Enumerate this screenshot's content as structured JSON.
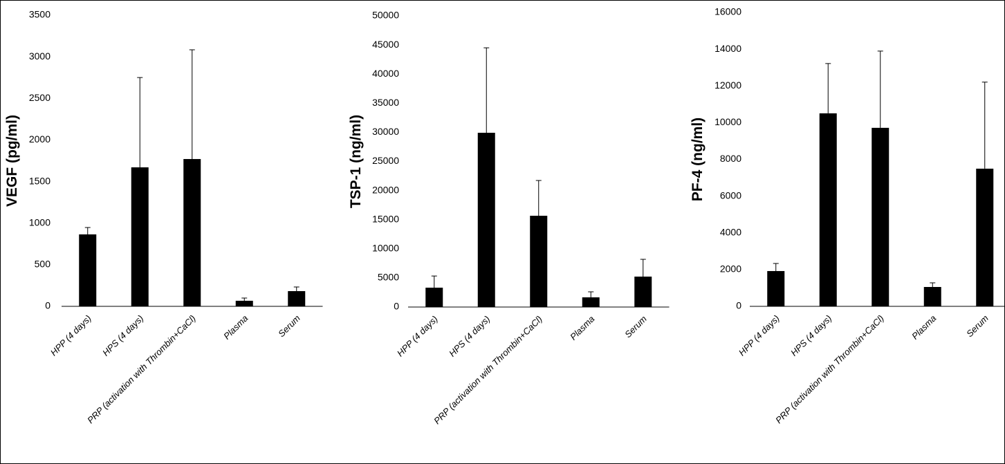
{
  "chart_data": [
    {
      "type": "bar",
      "y_label": "VEGF (pg/ml)",
      "color": "#000000",
      "categories": [
        "HPP (4 days)",
        "HPS (4 days)",
        "PRP (activation with Thrombin+CaCl)",
        "Plasma",
        "Serum"
      ],
      "values": [
        865,
        1671,
        1771,
        67,
        183
      ],
      "errors": [
        83,
        1080,
        1313,
        33,
        50
      ],
      "ylim": [
        0,
        3500
      ],
      "yticks": [
        0,
        500,
        1000,
        1500,
        2000,
        2500,
        3000,
        3500
      ]
    },
    {
      "type": "bar",
      "y_label": "TSP-1 (ng/ml)",
      "color": "#000000",
      "categories": [
        "HPP (4 days)",
        "HPS (4 days)",
        "PRP (activation with Thrombin+CaCl)",
        "Plasma",
        "Serum"
      ],
      "values": [
        3325,
        29929,
        15677,
        1663,
        5226
      ],
      "errors": [
        2000,
        14600,
        6060,
        950,
        2970
      ],
      "ylim": [
        0,
        50000
      ],
      "yticks": [
        0,
        5000,
        10000,
        15000,
        20000,
        25000,
        30000,
        35000,
        40000,
        45000,
        50000
      ]
    },
    {
      "type": "bar",
      "y_label": "PF-4 (ng/ml)",
      "color": "#000000",
      "categories": [
        "HPP (4 days)",
        "HPS (4 days)",
        "PRP (activation with Thrombin+CaCl)",
        "Plasma",
        "Serum"
      ],
      "values": [
        1921,
        10508,
        9718,
        1054,
        7495
      ],
      "errors": [
        414,
        2710,
        4180,
        227,
        4710
      ],
      "ylim": [
        0,
        16000
      ],
      "yticks": [
        0,
        2000,
        4000,
        6000,
        8000,
        10000,
        12000,
        14000,
        16000
      ]
    }
  ]
}
